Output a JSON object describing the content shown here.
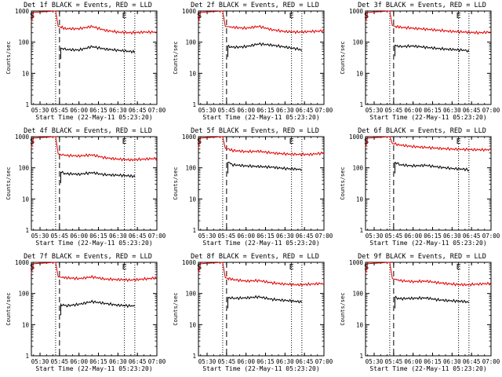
{
  "chart_data": [
    {
      "type": "line",
      "title": "Det 1f BLACK = Events, RED = LLD",
      "xlabel": "Start Time (22-May-11 05:23:20)",
      "ylabel": "Counts/sec",
      "x_ticks": [
        "05:30",
        "05:45",
        "06:00",
        "06:15",
        "06:30",
        "06:45",
        "07:00"
      ],
      "y_ticks": [
        "1",
        "10",
        "100",
        "1000"
      ],
      "y_scale": "log",
      "ylim": [
        1,
        1000
      ],
      "x_range": [
        "05:23:20",
        "07:00"
      ],
      "markers": {
        "S": "05:24",
        "E": "06:35"
      },
      "dashed_line": "05:45",
      "dotted_lines": [
        "05:42",
        "06:35",
        "06:43"
      ],
      "series": [
        {
          "name": "BLACK = Events",
          "color": "#000000",
          "x": [
            "05:46",
            "05:50",
            "06:00",
            "06:10",
            "06:20",
            "06:30",
            "06:40",
            "06:43"
          ],
          "values": [
            65,
            58,
            56,
            72,
            60,
            55,
            50,
            48
          ]
        },
        {
          "name": "RED = LLD",
          "color": "#e00000",
          "x": [
            "05:23:20",
            "05:25",
            "05:42",
            "05:44",
            "05:50",
            "06:00",
            "06:10",
            "06:20",
            "06:30",
            "06:40",
            "06:50",
            "07:00"
          ],
          "values": [
            450,
            900,
            1000,
            320,
            270,
            270,
            320,
            240,
            210,
            200,
            210,
            210
          ]
        }
      ]
    },
    {
      "type": "line",
      "title": "Det 2f BLACK = Events, RED = LLD",
      "xlabel": "Start Time (22-May-11 05:23:20)",
      "ylabel": "Counts/sec",
      "x_ticks": [
        "05:30",
        "05:45",
        "06:00",
        "06:15",
        "06:30",
        "06:45",
        "07:00"
      ],
      "y_ticks": [
        "1",
        "10",
        "100",
        "1000"
      ],
      "y_scale": "log",
      "ylim": [
        1,
        1000
      ],
      "x_range": [
        "05:23:20",
        "07:00"
      ],
      "markers": {
        "S": "05:24",
        "E": "06:35"
      },
      "dashed_line": "05:45",
      "dotted_lines": [
        "05:42",
        "06:35",
        "06:43"
      ],
      "series": [
        {
          "name": "BLACK = Events",
          "color": "#000000",
          "x": [
            "05:46",
            "05:50",
            "06:00",
            "06:10",
            "06:20",
            "06:30",
            "06:40",
            "06:43"
          ],
          "values": [
            75,
            68,
            72,
            88,
            80,
            70,
            60,
            55
          ]
        },
        {
          "name": "RED = LLD",
          "color": "#e00000",
          "x": [
            "05:23:20",
            "05:25",
            "05:42",
            "05:44",
            "05:50",
            "06:00",
            "06:10",
            "06:20",
            "06:30",
            "06:40",
            "06:50",
            "07:00"
          ],
          "values": [
            450,
            900,
            1000,
            320,
            300,
            280,
            320,
            250,
            220,
            210,
            220,
            230
          ]
        }
      ]
    },
    {
      "type": "line",
      "title": "Det 3f BLACK = Events, RED = LLD",
      "xlabel": "Start Time (22-May-11 05:23:20)",
      "ylabel": "Counts/sec",
      "x_ticks": [
        "05:30",
        "05:45",
        "06:00",
        "06:15",
        "06:30",
        "06:45",
        "07:00"
      ],
      "y_ticks": [
        "1",
        "10",
        "100",
        "1000"
      ],
      "y_scale": "log",
      "ylim": [
        1,
        1000
      ],
      "x_range": [
        "05:23:20",
        "07:00"
      ],
      "markers": {
        "S": "05:24",
        "E": "06:35"
      },
      "dashed_line": "05:45",
      "dotted_lines": [
        "05:42",
        "06:35",
        "06:43"
      ],
      "series": [
        {
          "name": "BLACK = Events",
          "color": "#000000",
          "x": [
            "05:46",
            "05:50",
            "06:00",
            "06:10",
            "06:20",
            "06:30",
            "06:40",
            "06:43"
          ],
          "values": [
            80,
            72,
            75,
            68,
            62,
            58,
            55,
            50
          ]
        },
        {
          "name": "RED = LLD",
          "color": "#e00000",
          "x": [
            "05:23:20",
            "05:25",
            "05:42",
            "05:44",
            "05:50",
            "06:00",
            "06:10",
            "06:20",
            "06:30",
            "06:40",
            "06:50",
            "07:00"
          ],
          "values": [
            450,
            900,
            1000,
            340,
            300,
            280,
            260,
            240,
            220,
            210,
            200,
            210
          ]
        }
      ]
    },
    {
      "type": "line",
      "title": "Det 4f BLACK = Events, RED = LLD",
      "xlabel": "Start Time (22-May-11 05:23:20)",
      "ylabel": "Counts/sec",
      "x_ticks": [
        "05:30",
        "05:45",
        "06:00",
        "06:15",
        "06:30",
        "06:45",
        "07:00"
      ],
      "y_ticks": [
        "1",
        "10",
        "100",
        "1000"
      ],
      "y_scale": "log",
      "ylim": [
        1,
        1000
      ],
      "x_range": [
        "05:23:20",
        "07:00"
      ],
      "markers": {
        "S": "05:24",
        "E": "06:35"
      },
      "dashed_line": "05:45",
      "dotted_lines": [
        "05:42",
        "06:35",
        "06:43"
      ],
      "series": [
        {
          "name": "BLACK = Events",
          "color": "#000000",
          "x": [
            "05:46",
            "05:50",
            "06:00",
            "06:10",
            "06:20",
            "06:30",
            "06:40",
            "06:43"
          ],
          "values": [
            72,
            65,
            62,
            70,
            60,
            58,
            55,
            52
          ]
        },
        {
          "name": "RED = LLD",
          "color": "#e00000",
          "x": [
            "05:23:20",
            "05:25",
            "05:42",
            "05:44",
            "05:50",
            "06:00",
            "06:10",
            "06:20",
            "06:30",
            "06:40",
            "06:50",
            "07:00"
          ],
          "values": [
            450,
            900,
            1000,
            280,
            250,
            240,
            260,
            210,
            190,
            180,
            190,
            200
          ]
        }
      ]
    },
    {
      "type": "line",
      "title": "Det 5f BLACK = Events, RED = LLD",
      "xlabel": "Start Time (22-May-11 05:23:20)",
      "ylabel": "Counts/sec",
      "x_ticks": [
        "05:30",
        "05:45",
        "06:00",
        "06:15",
        "06:30",
        "06:45",
        "07:00"
      ],
      "y_ticks": [
        "1",
        "10",
        "100",
        "1000"
      ],
      "y_scale": "log",
      "ylim": [
        1,
        1000
      ],
      "x_range": [
        "05:23:20",
        "07:00"
      ],
      "markers": {
        "S": "05:24",
        "E": "06:35"
      },
      "dashed_line": "05:45",
      "dotted_lines": [
        "05:42",
        "06:35",
        "06:43"
      ],
      "series": [
        {
          "name": "BLACK = Events",
          "color": "#000000",
          "x": [
            "05:46",
            "05:50",
            "06:00",
            "06:10",
            "06:20",
            "06:30",
            "06:40",
            "06:43"
          ],
          "values": [
            150,
            125,
            115,
            110,
            105,
            95,
            90,
            88
          ]
        },
        {
          "name": "RED = LLD",
          "color": "#e00000",
          "x": [
            "05:23:20",
            "05:25",
            "05:42",
            "05:44",
            "05:50",
            "06:00",
            "06:10",
            "06:20",
            "06:30",
            "06:40",
            "06:50",
            "07:00"
          ],
          "values": [
            450,
            900,
            1000,
            420,
            360,
            330,
            340,
            300,
            280,
            270,
            270,
            300
          ]
        }
      ]
    },
    {
      "type": "line",
      "title": "Det 6f BLACK = Events, RED = LLD",
      "xlabel": "Start Time (22-May-11 05:23:20)",
      "ylabel": "Counts/sec",
      "x_ticks": [
        "05:30",
        "05:45",
        "06:00",
        "06:15",
        "06:30",
        "06:45",
        "07:00"
      ],
      "y_ticks": [
        "1",
        "10",
        "100",
        "1000"
      ],
      "y_scale": "log",
      "ylim": [
        1,
        1000
      ],
      "x_range": [
        "05:23:20",
        "07:00"
      ],
      "markers": {
        "S": "05:24",
        "E": "06:35"
      },
      "dashed_line": "05:45",
      "dotted_lines": [
        "05:42",
        "06:35",
        "06:43"
      ],
      "series": [
        {
          "name": "BLACK = Events",
          "color": "#000000",
          "x": [
            "05:46",
            "05:50",
            "06:00",
            "06:10",
            "06:20",
            "06:30",
            "06:40",
            "06:43"
          ],
          "values": [
            150,
            125,
            115,
            120,
            105,
            95,
            90,
            85
          ]
        },
        {
          "name": "RED = LLD",
          "color": "#e00000",
          "x": [
            "05:23:20",
            "05:25",
            "05:42",
            "05:44",
            "05:50",
            "06:00",
            "06:10",
            "06:20",
            "06:30",
            "06:40",
            "06:50",
            "07:00"
          ],
          "values": [
            450,
            900,
            1000,
            600,
            540,
            480,
            450,
            420,
            400,
            390,
            380,
            380
          ]
        }
      ]
    },
    {
      "type": "line",
      "title": "Det 7f BLACK = Events, RED = LLD",
      "xlabel": "Start Time (22-May-11 05:23:20)",
      "ylabel": "Counts/sec",
      "x_ticks": [
        "05:30",
        "05:45",
        "06:00",
        "06:15",
        "06:30",
        "06:45",
        "07:00"
      ],
      "y_ticks": [
        "1",
        "10",
        "100",
        "1000"
      ],
      "y_scale": "log",
      "ylim": [
        1,
        1000
      ],
      "x_range": [
        "05:23:20",
        "07:00"
      ],
      "markers": {
        "S": "05:24",
        "E": "06:35"
      },
      "dashed_line": "05:45",
      "dotted_lines": [
        "05:42",
        "06:35",
        "06:43"
      ],
      "series": [
        {
          "name": "BLACK = Events",
          "color": "#000000",
          "x": [
            "05:46",
            "05:50",
            "06:00",
            "06:10",
            "06:20",
            "06:30",
            "06:40",
            "06:43"
          ],
          "values": [
            45,
            40,
            45,
            55,
            48,
            42,
            40,
            40
          ]
        },
        {
          "name": "RED = LLD",
          "color": "#e00000",
          "x": [
            "05:23:20",
            "05:25",
            "05:42",
            "05:44",
            "05:50",
            "06:00",
            "06:10",
            "06:20",
            "06:30",
            "06:40",
            "06:50",
            "07:00"
          ],
          "values": [
            450,
            900,
            1000,
            340,
            320,
            300,
            340,
            290,
            280,
            270,
            290,
            320
          ]
        }
      ]
    },
    {
      "type": "line",
      "title": "Det 8f BLACK = Events, RED = LLD",
      "xlabel": "Start Time (22-May-11 05:23:20)",
      "ylabel": "Counts/sec",
      "x_ticks": [
        "05:30",
        "05:45",
        "06:00",
        "06:15",
        "06:30",
        "06:45",
        "07:00"
      ],
      "y_ticks": [
        "1",
        "10",
        "100",
        "1000"
      ],
      "y_scale": "log",
      "ylim": [
        1,
        1000
      ],
      "x_range": [
        "05:23:20",
        "07:00"
      ],
      "markers": {
        "S": "05:24",
        "E": "06:35"
      },
      "dashed_line": "05:45",
      "dotted_lines": [
        "05:42",
        "06:35",
        "06:43"
      ],
      "series": [
        {
          "name": "BLACK = Events",
          "color": "#000000",
          "x": [
            "05:46",
            "05:50",
            "06:00",
            "06:10",
            "06:20",
            "06:30",
            "06:40",
            "06:43"
          ],
          "values": [
            75,
            70,
            72,
            78,
            65,
            60,
            55,
            52
          ]
        },
        {
          "name": "RED = LLD",
          "color": "#e00000",
          "x": [
            "05:23:20",
            "05:25",
            "05:42",
            "05:44",
            "05:50",
            "06:00",
            "06:10",
            "06:20",
            "06:30",
            "06:40",
            "06:50",
            "07:00"
          ],
          "values": [
            450,
            900,
            1000,
            320,
            280,
            250,
            260,
            220,
            200,
            190,
            200,
            210
          ]
        }
      ]
    },
    {
      "type": "line",
      "title": "Det 9f BLACK = Events, RED = LLD",
      "xlabel": "Start Time (22-May-11 05:23:20)",
      "ylabel": "Counts/sec",
      "x_ticks": [
        "05:30",
        "05:45",
        "06:00",
        "06:15",
        "06:30",
        "06:45",
        "07:00"
      ],
      "y_ticks": [
        "1",
        "10",
        "100",
        "1000"
      ],
      "y_scale": "log",
      "ylim": [
        1,
        1000
      ],
      "x_range": [
        "05:23:20",
        "07:00"
      ],
      "markers": {
        "S": "05:24",
        "E": "06:35"
      },
      "dashed_line": "05:45",
      "dotted_lines": [
        "05:42",
        "06:35",
        "06:43"
      ],
      "series": [
        {
          "name": "BLACK = Events",
          "color": "#000000",
          "x": [
            "05:46",
            "05:50",
            "06:00",
            "06:10",
            "06:20",
            "06:30",
            "06:40",
            "06:43"
          ],
          "values": [
            75,
            68,
            70,
            72,
            62,
            58,
            55,
            52
          ]
        },
        {
          "name": "RED = LLD",
          "color": "#e00000",
          "x": [
            "05:23:20",
            "05:25",
            "05:42",
            "05:44",
            "05:50",
            "06:00",
            "06:10",
            "06:20",
            "06:30",
            "06:40",
            "06:50",
            "07:00"
          ],
          "values": [
            450,
            900,
            1000,
            300,
            260,
            240,
            250,
            220,
            200,
            190,
            200,
            210
          ]
        }
      ]
    }
  ]
}
